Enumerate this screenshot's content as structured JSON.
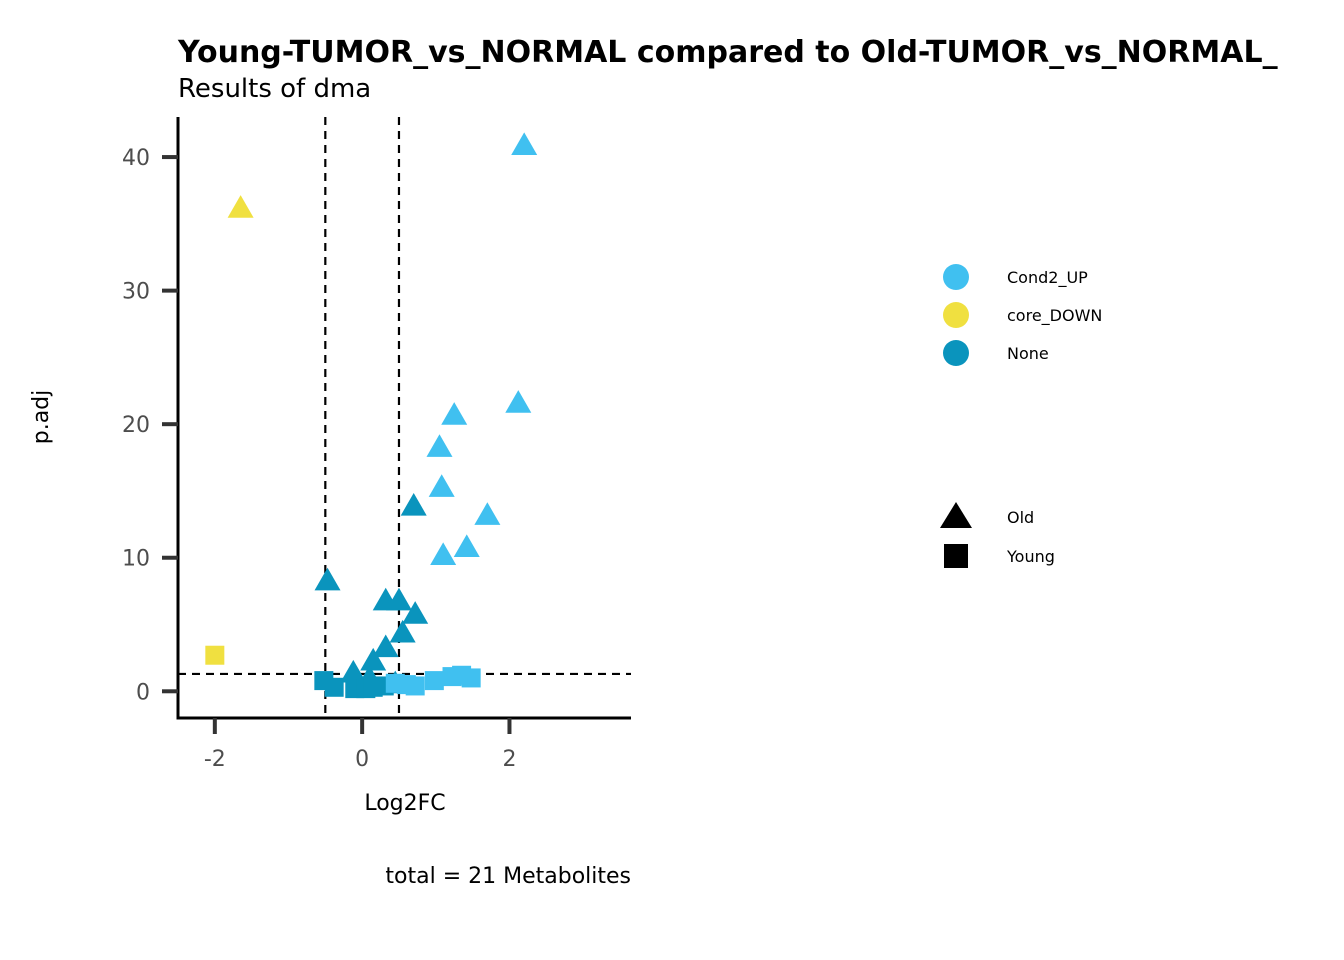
{
  "chart_data": {
    "type": "scatter",
    "title": "Young-TUMOR_vs_NORMAL compared to Old-TUMOR_vs_NORMAL_",
    "subtitle": "Results of dma",
    "xlabel": "Log2FC",
    "ylabel": "p.adj",
    "caption": "total = 21 Metabolites",
    "xlim": [
      -2.5,
      3.65
    ],
    "ylim": [
      -2.0,
      43.0
    ],
    "xticks": [
      -2,
      0,
      2
    ],
    "yticks": [
      0,
      10,
      20,
      30,
      40
    ],
    "grid": false,
    "vlines": [
      -0.5,
      0.5
    ],
    "hline": 1.3,
    "legend_position": "right",
    "colors": {
      "Cond2_UP": "#40c0f0",
      "core_DOWN": "#f0e040",
      "None": "#0a94bd"
    },
    "legend": {
      "color": [
        "Cond2_UP",
        "core_DOWN",
        "None"
      ],
      "shape": [
        "Old",
        "Young"
      ]
    },
    "points": [
      {
        "x": 2.2,
        "y": 40.8,
        "group": "Cond2_UP",
        "shape": "Old"
      },
      {
        "x": -1.65,
        "y": 36.1,
        "group": "core_DOWN",
        "shape": "Old"
      },
      {
        "x": 2.12,
        "y": 21.5,
        "group": "Cond2_UP",
        "shape": "Old"
      },
      {
        "x": 1.25,
        "y": 20.6,
        "group": "Cond2_UP",
        "shape": "Old"
      },
      {
        "x": 1.05,
        "y": 18.2,
        "group": "Cond2_UP",
        "shape": "Old"
      },
      {
        "x": 1.08,
        "y": 15.2,
        "group": "Cond2_UP",
        "shape": "Old"
      },
      {
        "x": 0.7,
        "y": 13.8,
        "group": "None",
        "shape": "Old"
      },
      {
        "x": 1.7,
        "y": 13.1,
        "group": "Cond2_UP",
        "shape": "Old"
      },
      {
        "x": 1.42,
        "y": 10.7,
        "group": "Cond2_UP",
        "shape": "Old"
      },
      {
        "x": 1.1,
        "y": 10.1,
        "group": "Cond2_UP",
        "shape": "Old"
      },
      {
        "x": -0.47,
        "y": 8.2,
        "group": "None",
        "shape": "Old"
      },
      {
        "x": 0.32,
        "y": 6.7,
        "group": "None",
        "shape": "Old"
      },
      {
        "x": 0.5,
        "y": 6.7,
        "group": "None",
        "shape": "Old"
      },
      {
        "x": 0.72,
        "y": 5.7,
        "group": "None",
        "shape": "Old"
      },
      {
        "x": 0.55,
        "y": 4.3,
        "group": "None",
        "shape": "Old"
      },
      {
        "x": 0.32,
        "y": 3.2,
        "group": "None",
        "shape": "Old"
      },
      {
        "x": 0.15,
        "y": 2.2,
        "group": "None",
        "shape": "Old"
      },
      {
        "x": -0.12,
        "y": 1.3,
        "group": "None",
        "shape": "Old"
      },
      {
        "x": 0.1,
        "y": 0.9,
        "group": "None",
        "shape": "Old"
      },
      {
        "x": 0.45,
        "y": 0.5,
        "group": "None",
        "shape": "Old"
      },
      {
        "x": -0.05,
        "y": 0.3,
        "group": "None",
        "shape": "Old"
      },
      {
        "x": -2.0,
        "y": 2.7,
        "group": "core_DOWN",
        "shape": "Young"
      },
      {
        "x": -0.52,
        "y": 0.8,
        "group": "None",
        "shape": "Young"
      },
      {
        "x": -0.38,
        "y": 0.3,
        "group": "None",
        "shape": "Young"
      },
      {
        "x": -0.1,
        "y": 0.2,
        "group": "None",
        "shape": "Young"
      },
      {
        "x": 0.05,
        "y": 0.2,
        "group": "None",
        "shape": "Young"
      },
      {
        "x": 0.15,
        "y": 0.3,
        "group": "None",
        "shape": "Young"
      },
      {
        "x": 0.3,
        "y": 0.4,
        "group": "None",
        "shape": "Young"
      },
      {
        "x": 0.45,
        "y": 0.6,
        "group": "Cond2_UP",
        "shape": "Young"
      },
      {
        "x": 0.6,
        "y": 0.5,
        "group": "Cond2_UP",
        "shape": "Young"
      },
      {
        "x": 0.72,
        "y": 0.4,
        "group": "Cond2_UP",
        "shape": "Young"
      },
      {
        "x": 0.98,
        "y": 0.8,
        "group": "Cond2_UP",
        "shape": "Young"
      },
      {
        "x": 1.22,
        "y": 1.1,
        "group": "Cond2_UP",
        "shape": "Young"
      },
      {
        "x": 1.35,
        "y": 1.2,
        "group": "Cond2_UP",
        "shape": "Young"
      },
      {
        "x": 1.48,
        "y": 1.0,
        "group": "Cond2_UP",
        "shape": "Young"
      }
    ]
  }
}
